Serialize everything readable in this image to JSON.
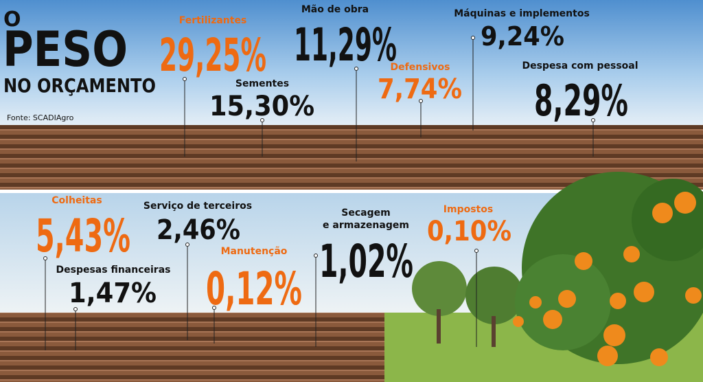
{
  "header": {
    "line1": "O",
    "line2": "PESO",
    "line3": "NO ORÇAMENTO",
    "source": "Fonte: SCADIAgro"
  },
  "items": [
    {
      "label": "Fertilizantes",
      "value": "29,25%"
    },
    {
      "label": "Mão de obra",
      "value": "11,29%"
    },
    {
      "label": "Máquinas e implementos",
      "value": "9,24%"
    },
    {
      "label": "Sementes",
      "value": "15,30%"
    },
    {
      "label": "Defensivos",
      "value": "7,74%"
    },
    {
      "label": "Despesa com pessoal",
      "value": "8,29%"
    },
    {
      "label": "Colheitas",
      "value": "5,43%"
    },
    {
      "label": "Serviço de terceiros",
      "value": "2,46%"
    },
    {
      "label": "Secagem",
      "label2": "e armazenagem",
      "value": "1,02%"
    },
    {
      "label": "Impostos",
      "value": "0,10%"
    },
    {
      "label": "Despesas financeiras",
      "value": "1,47%"
    },
    {
      "label": "Manutenção",
      "value": "0,12%"
    }
  ]
}
